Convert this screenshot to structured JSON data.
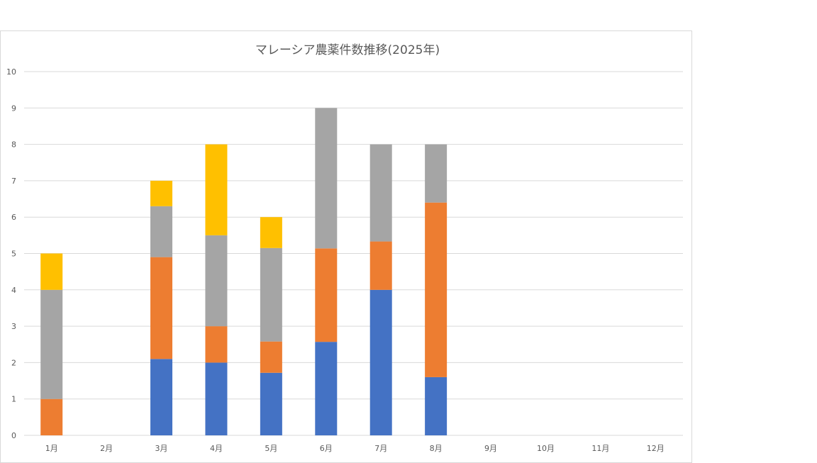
{
  "chart_data": {
    "type": "bar",
    "stacked": true,
    "title": "マレーシア農薬件数推移(2025年)",
    "xlabel": "",
    "ylabel": "",
    "categories": [
      "1月",
      "2月",
      "3月",
      "4月",
      "5月",
      "6月",
      "7月",
      "8月",
      "9月",
      "10月",
      "11月",
      "12月"
    ],
    "ylim": [
      0,
      10
    ],
    "yticks": [
      0,
      1,
      2,
      3,
      4,
      5,
      6,
      7,
      8,
      9,
      10
    ],
    "grid": true,
    "series": [
      {
        "color": "#4472c4",
        "values": [
          0,
          0,
          2.1,
          2,
          1.72,
          2.57,
          4,
          1.6,
          0,
          0,
          0,
          0
        ]
      },
      {
        "color": "#ed7d31",
        "values": [
          1,
          0,
          2.8,
          1,
          0.86,
          2.57,
          1.33,
          4.8,
          0,
          0,
          0,
          0
        ]
      },
      {
        "color": "#a5a5a5",
        "values": [
          3,
          0,
          1.4,
          2.5,
          2.57,
          3.86,
          2.67,
          1.6,
          0,
          0,
          0,
          0
        ]
      },
      {
        "color": "#ffc000",
        "values": [
          1,
          0,
          0.7,
          2.5,
          0.85,
          0,
          0,
          0,
          0,
          0,
          0,
          0
        ]
      }
    ]
  }
}
